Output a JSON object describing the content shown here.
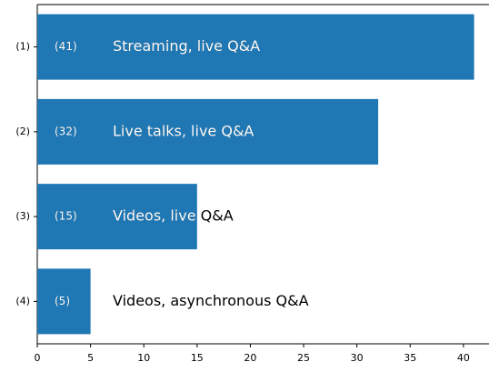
{
  "chart_data": {
    "type": "barh",
    "categories": [
      "(1)",
      "(2)",
      "(3)",
      "(4)"
    ],
    "values": [
      41,
      32,
      15,
      5
    ],
    "value_labels": [
      "(41)",
      "(32)",
      "(15)",
      "(5)"
    ],
    "labels": [
      "Streaming, live Q&A",
      "Live talks, live Q&A",
      "Videos, live Q&A",
      "Videos, asynchronous Q&A"
    ],
    "color": "#1f77b4",
    "xlim": [
      0,
      42.4
    ],
    "xticks": [
      0,
      5,
      10,
      15,
      20,
      25,
      30,
      35,
      40
    ]
  }
}
